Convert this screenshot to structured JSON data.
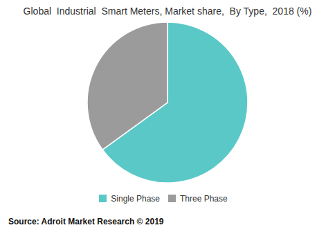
{
  "chart_data": {
    "type": "pie",
    "title": "Global  Industrial  Smart Meters, Market share,  By Type,  2018 (%)",
    "categories": [
      "Single Phase",
      "Three Phase"
    ],
    "values": [
      65,
      35
    ],
    "colors": [
      "#5BC8C8",
      "#9B9B9B"
    ],
    "legend": "bottom",
    "annotations": [
      "Source: Adroit Market Research © 2019"
    ]
  }
}
